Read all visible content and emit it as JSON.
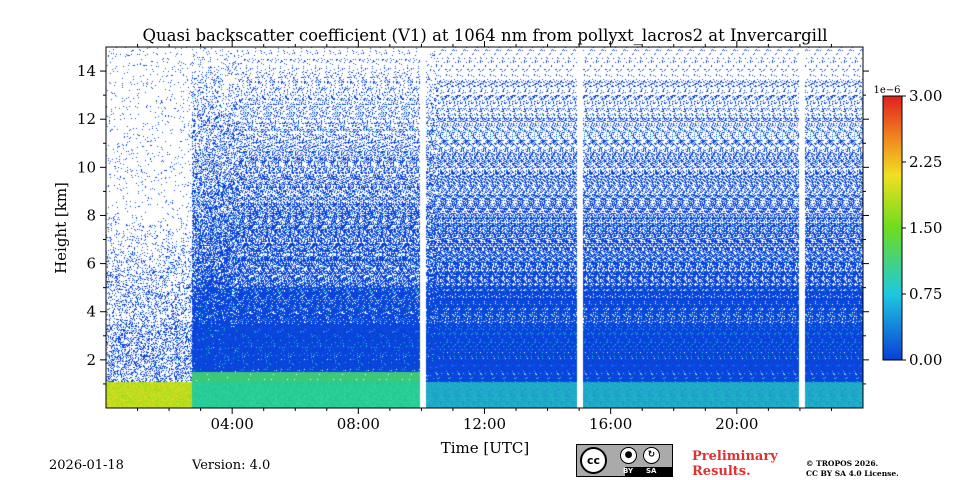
{
  "chart_data": {
    "type": "heatmap",
    "title": "Quasi backscatter coefficient (V1) at 1064 nm from pollyxt_lacros2 at Invercargill",
    "xlabel": "Time [UTC]",
    "ylabel": "Height [km]",
    "xlim_hours": [
      0,
      24
    ],
    "ylim_km": [
      0,
      15
    ],
    "x_ticks": [
      {
        "hour": 4,
        "label": "04:00"
      },
      {
        "hour": 8,
        "label": "08:00"
      },
      {
        "hour": 12,
        "label": "12:00"
      },
      {
        "hour": 16,
        "label": "16:00"
      },
      {
        "hour": 20,
        "label": "20:00"
      }
    ],
    "y_ticks": [
      {
        "km": 2,
        "label": "2"
      },
      {
        "km": 4,
        "label": "4"
      },
      {
        "km": 6,
        "label": "6"
      },
      {
        "km": 8,
        "label": "8"
      },
      {
        "km": 10,
        "label": "10"
      },
      {
        "km": 12,
        "label": "12"
      },
      {
        "km": 14,
        "label": "14"
      }
    ],
    "colorbar": {
      "range": [
        0,
        3e-06
      ],
      "exponent_label": "1e−6",
      "ticks": [
        {
          "value": 0.0,
          "label": "0.00"
        },
        {
          "value": 0.75,
          "label": "0.75"
        },
        {
          "value": 1.5,
          "label": "1.50"
        },
        {
          "value": 2.25,
          "label": "2.25"
        },
        {
          "value": 3.0,
          "label": "3.00"
        }
      ]
    },
    "data_gaps_hours": [
      10.05,
      15.0,
      22.05
    ],
    "boundary_layer_top_km": 1.1,
    "dense_signal_top_km": 5.0
  },
  "footer": {
    "date": "2026-01-18",
    "version": "Version: 4.0",
    "preliminary_line1": "Preliminary",
    "preliminary_line2": "Results.",
    "copyright_line1": "© TROPOS 2026.",
    "copyright_line2": "CC BY SA 4.0 License.",
    "cc_badge": {
      "cc": "cc",
      "by": "BY",
      "sa": "SA"
    }
  },
  "colors": {
    "low": "#0a3fd6",
    "mid": "#1ec8e0",
    "green": "#6ddc20",
    "high": "#e03030"
  }
}
